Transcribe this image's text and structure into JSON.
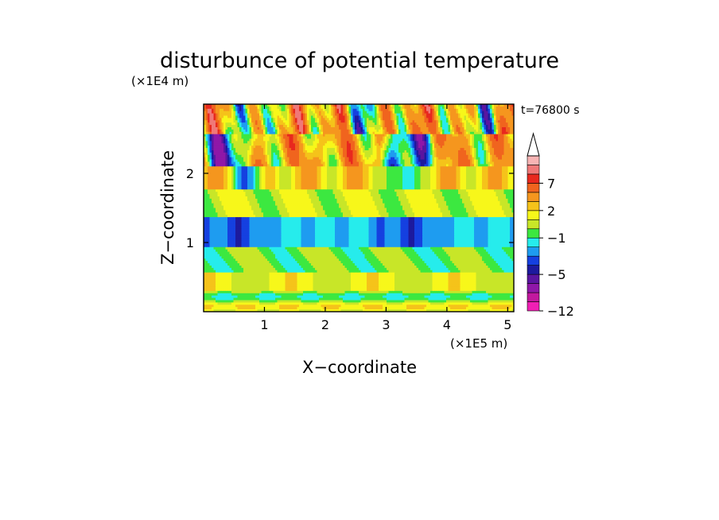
{
  "chart_data": {
    "type": "heatmap",
    "title": "disturbunce of potential temperature",
    "time_label": "t=76800 s",
    "xlabel": "X−coordinate",
    "ylabel": "Z−coordinate",
    "x_scale_label": "(×1E5 m)",
    "y_scale_label": "(×1E4 m)",
    "xlim": [
      0.0,
      5.1
    ],
    "ylim": [
      0.0,
      3.0
    ],
    "x_ticks": [
      "1",
      "2",
      "3",
      "4",
      "5"
    ],
    "x_tick_values": [
      1,
      2,
      3,
      4,
      5
    ],
    "y_ticks": [
      "1",
      "2"
    ],
    "y_tick_values": [
      1,
      2
    ],
    "colorbar": {
      "labels": [
        "−12",
        "−5",
        "−1",
        "2",
        "7"
      ],
      "label_values": [
        -12,
        -5,
        -1,
        2,
        7
      ],
      "colors": [
        "#f01fb4",
        "#c2189e",
        "#8f17a8",
        "#5a15a0",
        "#1d1a9e",
        "#1540e0",
        "#1e9cf0",
        "#26ecec",
        "#3ce840",
        "#c8e628",
        "#f7f71a",
        "#f5c31a",
        "#f5961e",
        "#f0641e",
        "#e8281e",
        "#f07878",
        "#f8b4b4"
      ],
      "extend": "max",
      "grid": false
    },
    "field": {
      "description_rows_from_top": true,
      "columns": 52,
      "rows": 30,
      "bands": [
        {
          "z": [
            2.55,
            3.0
          ],
          "values": "mixed: warm (2 to 9) with cold patches (-5 to -3)"
        },
        {
          "z": [
            2.1,
            2.55
          ],
          "values": "warm 2 to 7 with cold pockets -5"
        },
        {
          "z": [
            1.75,
            2.1
          ],
          "values": "warm 2 to 4 with cold -4"
        },
        {
          "z": [
            1.35,
            1.75
          ],
          "values": "0 to 2"
        },
        {
          "z": [
            0.95,
            1.35
          ],
          "values": "-1 to -4"
        },
        {
          "z": [
            0.55,
            0.95
          ],
          "values": "-1 to 1"
        },
        {
          "z": [
            0.3,
            0.55
          ],
          "values": "0 to 2"
        },
        {
          "z": [
            0.0,
            0.3
          ],
          "values": "-1 to 2"
        }
      ]
    }
  }
}
